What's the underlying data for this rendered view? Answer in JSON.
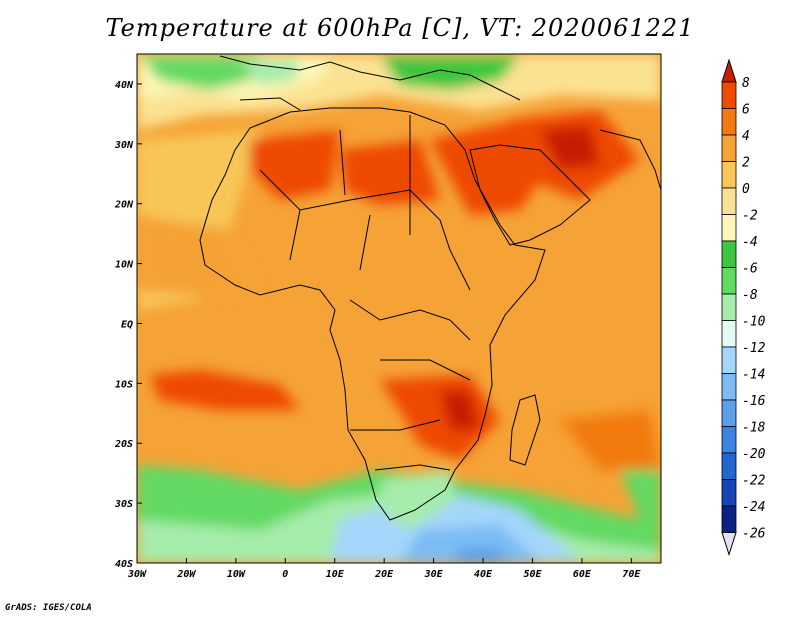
{
  "title": "Temperature at 600hPa [C], VT: 2020061221",
  "credit": "GrADS: IGES/COLA",
  "map": {
    "lon_range": [
      -30,
      76
    ],
    "lat_range": [
      -40,
      45
    ],
    "lon_ticks": [
      "30W",
      "20W",
      "10W",
      "0",
      "10E",
      "20E",
      "30E",
      "40E",
      "50E",
      "60E",
      "70E"
    ],
    "lat_ticks": [
      "40S",
      "30S",
      "20S",
      "10S",
      "EQ",
      "10N",
      "20N",
      "30N",
      "40N"
    ]
  },
  "colorbar": {
    "levels": [
      "8",
      "6",
      "4",
      "2",
      "0",
      "-2",
      "-4",
      "-6",
      "-8",
      "-10",
      "-12",
      "-14",
      "-16",
      "-18",
      "-20",
      "-22",
      "-24",
      "-26"
    ],
    "colors": [
      "#c81e00",
      "#ee4a00",
      "#f27a10",
      "#f5a236",
      "#f8c659",
      "#fbe292",
      "#fdf6b6",
      "#3ec63e",
      "#62d962",
      "#a6ecaa",
      "#e2fbf4",
      "#a4d6fb",
      "#7cbbf4",
      "#5ca0ec",
      "#3c84e2",
      "#2466d0",
      "#1546b4",
      "#0a2282"
    ]
  }
}
